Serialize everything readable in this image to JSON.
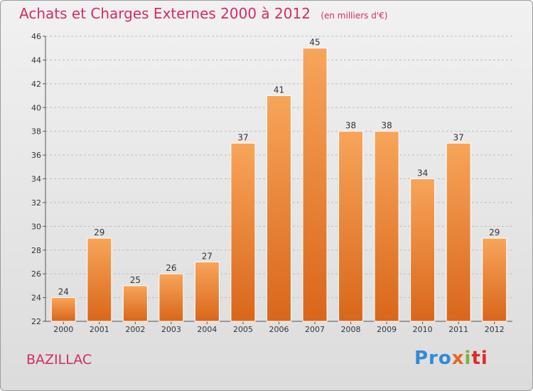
{
  "chart_data": {
    "type": "bar",
    "title": "Achats et Charges Externes 2000 à 2012",
    "unit_note": "(en milliers d'€)",
    "categories": [
      "2000",
      "2001",
      "2002",
      "2003",
      "2004",
      "2005",
      "2006",
      "2007",
      "2008",
      "2009",
      "2010",
      "2011",
      "2012"
    ],
    "values": [
      24,
      29,
      25,
      26,
      27,
      37,
      41,
      45,
      38,
      38,
      34,
      37,
      29
    ],
    "ylim": [
      22,
      46
    ],
    "yticks": [
      22,
      24,
      26,
      28,
      30,
      32,
      34,
      36,
      38,
      40,
      42,
      44,
      46
    ],
    "grid": true,
    "bar_color": "#f08a30"
  },
  "commune": "BAZILLAC",
  "logo": {
    "p1": "Pro",
    "p2": "x",
    "p3": "i",
    "p4": "ti"
  }
}
